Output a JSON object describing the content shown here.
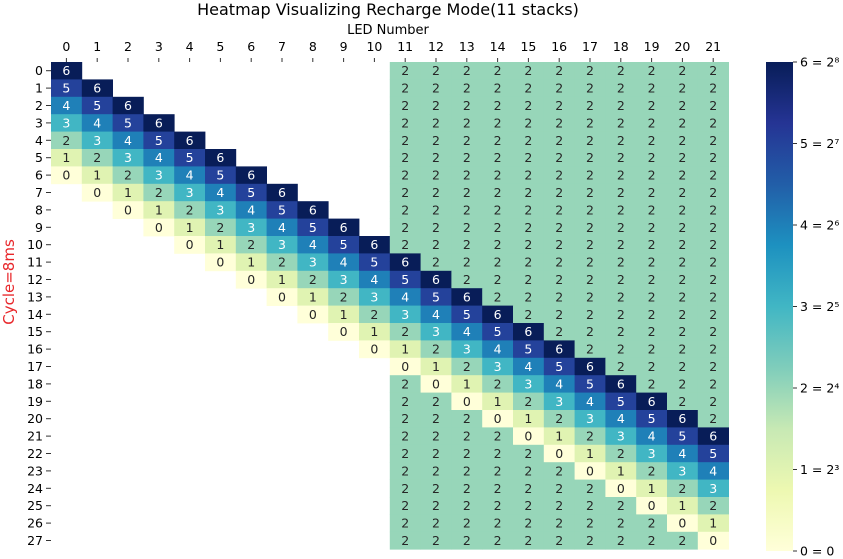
{
  "chart_data": {
    "type": "heatmap",
    "title": "Heatmap Visualizing Recharge Mode(11 stacks)",
    "xlabel": "LED Number",
    "ylabel": "Cycle=8ms",
    "ylabel_color": "#e8262a",
    "x_ticks": [
      "0",
      "1",
      "2",
      "3",
      "4",
      "5",
      "6",
      "7",
      "8",
      "9",
      "10",
      "11",
      "12",
      "13",
      "14",
      "15",
      "16",
      "17",
      "18",
      "19",
      "20",
      "21"
    ],
    "y_ticks": [
      "0",
      "1",
      "2",
      "3",
      "4",
      "5",
      "6",
      "7",
      "8",
      "9",
      "10",
      "11",
      "12",
      "13",
      "14",
      "15",
      "16",
      "17",
      "18",
      "19",
      "20",
      "21",
      "22",
      "23",
      "24",
      "25",
      "26",
      "27"
    ],
    "x_axis_position": "top",
    "vmin": 0,
    "vmax": 6,
    "colormap": "YlGnBu",
    "colorbar_ticks": [
      "0 = 0",
      "1 = 2³",
      "2 = 2⁴",
      "3 = 2⁵",
      "4 = 2⁶",
      "5 = 2⁷",
      "6 = 2⁸"
    ],
    "values": [
      [
        6,
        null,
        null,
        null,
        null,
        null,
        null,
        null,
        null,
        null,
        null,
        2,
        2,
        2,
        2,
        2,
        2,
        2,
        2,
        2,
        2,
        2
      ],
      [
        5,
        6,
        null,
        null,
        null,
        null,
        null,
        null,
        null,
        null,
        null,
        2,
        2,
        2,
        2,
        2,
        2,
        2,
        2,
        2,
        2,
        2
      ],
      [
        4,
        5,
        6,
        null,
        null,
        null,
        null,
        null,
        null,
        null,
        null,
        2,
        2,
        2,
        2,
        2,
        2,
        2,
        2,
        2,
        2,
        2
      ],
      [
        3,
        4,
        5,
        6,
        null,
        null,
        null,
        null,
        null,
        null,
        null,
        2,
        2,
        2,
        2,
        2,
        2,
        2,
        2,
        2,
        2,
        2
      ],
      [
        2,
        3,
        4,
        5,
        6,
        null,
        null,
        null,
        null,
        null,
        null,
        2,
        2,
        2,
        2,
        2,
        2,
        2,
        2,
        2,
        2,
        2
      ],
      [
        1,
        2,
        3,
        4,
        5,
        6,
        null,
        null,
        null,
        null,
        null,
        2,
        2,
        2,
        2,
        2,
        2,
        2,
        2,
        2,
        2,
        2
      ],
      [
        0,
        1,
        2,
        3,
        4,
        5,
        6,
        null,
        null,
        null,
        null,
        2,
        2,
        2,
        2,
        2,
        2,
        2,
        2,
        2,
        2,
        2
      ],
      [
        null,
        0,
        1,
        2,
        3,
        4,
        5,
        6,
        null,
        null,
        null,
        2,
        2,
        2,
        2,
        2,
        2,
        2,
        2,
        2,
        2,
        2
      ],
      [
        null,
        null,
        0,
        1,
        2,
        3,
        4,
        5,
        6,
        null,
        null,
        2,
        2,
        2,
        2,
        2,
        2,
        2,
        2,
        2,
        2,
        2
      ],
      [
        null,
        null,
        null,
        0,
        1,
        2,
        3,
        4,
        5,
        6,
        null,
        2,
        2,
        2,
        2,
        2,
        2,
        2,
        2,
        2,
        2,
        2
      ],
      [
        null,
        null,
        null,
        null,
        0,
        1,
        2,
        3,
        4,
        5,
        6,
        2,
        2,
        2,
        2,
        2,
        2,
        2,
        2,
        2,
        2,
        2
      ],
      [
        null,
        null,
        null,
        null,
        null,
        0,
        1,
        2,
        3,
        4,
        5,
        6,
        2,
        2,
        2,
        2,
        2,
        2,
        2,
        2,
        2,
        2
      ],
      [
        null,
        null,
        null,
        null,
        null,
        null,
        0,
        1,
        2,
        3,
        4,
        5,
        6,
        2,
        2,
        2,
        2,
        2,
        2,
        2,
        2,
        2
      ],
      [
        null,
        null,
        null,
        null,
        null,
        null,
        null,
        0,
        1,
        2,
        3,
        4,
        5,
        6,
        2,
        2,
        2,
        2,
        2,
        2,
        2,
        2
      ],
      [
        null,
        null,
        null,
        null,
        null,
        null,
        null,
        null,
        0,
        1,
        2,
        3,
        4,
        5,
        6,
        2,
        2,
        2,
        2,
        2,
        2,
        2
      ],
      [
        null,
        null,
        null,
        null,
        null,
        null,
        null,
        null,
        null,
        0,
        1,
        2,
        3,
        4,
        5,
        6,
        2,
        2,
        2,
        2,
        2,
        2
      ],
      [
        null,
        null,
        null,
        null,
        null,
        null,
        null,
        null,
        null,
        null,
        0,
        1,
        2,
        3,
        4,
        5,
        6,
        2,
        2,
        2,
        2,
        2
      ],
      [
        null,
        null,
        null,
        null,
        null,
        null,
        null,
        null,
        null,
        null,
        null,
        0,
        1,
        2,
        3,
        4,
        5,
        6,
        2,
        2,
        2,
        2
      ],
      [
        null,
        null,
        null,
        null,
        null,
        null,
        null,
        null,
        null,
        null,
        null,
        2,
        0,
        1,
        2,
        3,
        4,
        5,
        6,
        2,
        2,
        2
      ],
      [
        null,
        null,
        null,
        null,
        null,
        null,
        null,
        null,
        null,
        null,
        null,
        2,
        2,
        0,
        1,
        2,
        3,
        4,
        5,
        6,
        2,
        2
      ],
      [
        null,
        null,
        null,
        null,
        null,
        null,
        null,
        null,
        null,
        null,
        null,
        2,
        2,
        2,
        0,
        1,
        2,
        3,
        4,
        5,
        6,
        2
      ],
      [
        null,
        null,
        null,
        null,
        null,
        null,
        null,
        null,
        null,
        null,
        null,
        2,
        2,
        2,
        2,
        0,
        1,
        2,
        3,
        4,
        5,
        6
      ],
      [
        null,
        null,
        null,
        null,
        null,
        null,
        null,
        null,
        null,
        null,
        null,
        2,
        2,
        2,
        2,
        2,
        0,
        1,
        2,
        3,
        4,
        5
      ],
      [
        null,
        null,
        null,
        null,
        null,
        null,
        null,
        null,
        null,
        null,
        null,
        2,
        2,
        2,
        2,
        2,
        2,
        0,
        1,
        2,
        3,
        4
      ],
      [
        null,
        null,
        null,
        null,
        null,
        null,
        null,
        null,
        null,
        null,
        null,
        2,
        2,
        2,
        2,
        2,
        2,
        2,
        0,
        1,
        2,
        3
      ],
      [
        null,
        null,
        null,
        null,
        null,
        null,
        null,
        null,
        null,
        null,
        null,
        2,
        2,
        2,
        2,
        2,
        2,
        2,
        2,
        0,
        1,
        2
      ],
      [
        null,
        null,
        null,
        null,
        null,
        null,
        null,
        null,
        null,
        null,
        null,
        2,
        2,
        2,
        2,
        2,
        2,
        2,
        2,
        2,
        0,
        1
      ],
      [
        null,
        null,
        null,
        null,
        null,
        null,
        null,
        null,
        null,
        null,
        null,
        2,
        2,
        2,
        2,
        2,
        2,
        2,
        2,
        2,
        2,
        0
      ]
    ]
  }
}
